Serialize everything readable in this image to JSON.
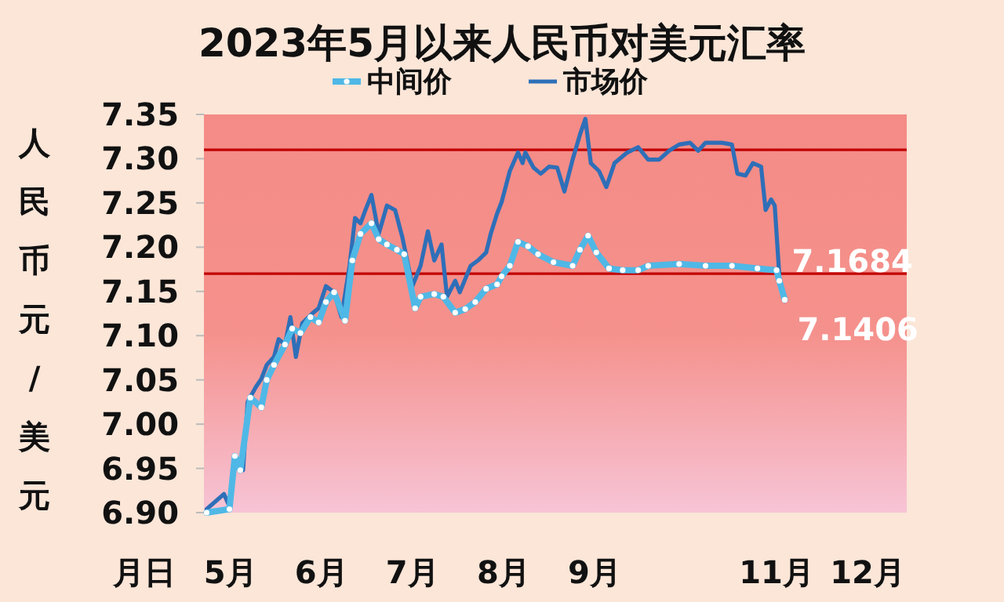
{
  "chart_data": {
    "type": "line",
    "title": "2023年5月以来人民币对美元汇率",
    "ylabel": "人民币元/美元",
    "xlabel": "月日",
    "xlim": [
      4.71,
      12.43
    ],
    "xticks": [
      {
        "value": 5,
        "label": "5月"
      },
      {
        "value": 6,
        "label": "6月"
      },
      {
        "value": 7,
        "label": "7月"
      },
      {
        "value": 8,
        "label": "8月"
      },
      {
        "value": 9,
        "label": "9月"
      },
      {
        "value": 11,
        "label": "11月"
      },
      {
        "value": 12,
        "label": "12月"
      }
    ],
    "ylim": [
      6.9,
      7.35
    ],
    "yticks": [
      {
        "value": 6.9,
        "label": "6.90"
      },
      {
        "value": 6.95,
        "label": "6.95"
      },
      {
        "value": 7.0,
        "label": "7.00"
      },
      {
        "value": 7.05,
        "label": "7.05"
      },
      {
        "value": 7.1,
        "label": "7.10"
      },
      {
        "value": 7.15,
        "label": "7.15"
      },
      {
        "value": 7.2,
        "label": "7.20"
      },
      {
        "value": 7.25,
        "label": "7.25"
      },
      {
        "value": 7.3,
        "label": "7.30"
      },
      {
        "value": 7.35,
        "label": "7.35"
      }
    ],
    "grid": false,
    "legend": "top",
    "series": [
      {
        "name": "中间价",
        "color": "#4fb8e6",
        "marker": "circle",
        "x": [
          4.74,
          4.99,
          5.05,
          5.11,
          5.22,
          5.34,
          5.4,
          5.48,
          5.6,
          5.68,
          5.77,
          5.88,
          5.97,
          6.05,
          6.14,
          6.26,
          6.34,
          6.43,
          6.55,
          6.63,
          6.72,
          6.83,
          6.91,
          7.03,
          7.09,
          7.24,
          7.34,
          7.47,
          7.58,
          7.69,
          7.81,
          7.93,
          7.98,
          8.07,
          8.16,
          8.27,
          8.38,
          8.55,
          8.76,
          8.84,
          8.93,
          9.02,
          9.16,
          9.31,
          9.48,
          9.59,
          9.93,
          10.22,
          10.51,
          10.79,
          11.0,
          11.03,
          11.09
        ],
        "values": [
          6.9,
          6.904,
          6.964,
          6.948,
          7.03,
          7.019,
          7.05,
          7.067,
          7.09,
          7.108,
          7.103,
          7.121,
          7.115,
          7.138,
          7.149,
          7.117,
          7.185,
          7.215,
          7.227,
          7.209,
          7.203,
          7.197,
          7.192,
          7.131,
          7.144,
          7.147,
          7.144,
          7.126,
          7.13,
          7.138,
          7.153,
          7.158,
          7.167,
          7.179,
          7.206,
          7.201,
          7.192,
          7.183,
          7.179,
          7.197,
          7.213,
          7.194,
          7.176,
          7.174,
          7.174,
          7.179,
          7.181,
          7.179,
          7.179,
          7.176,
          7.174,
          7.162,
          7.1406
        ]
      },
      {
        "name": "市场价",
        "color": "#2e6fb8",
        "marker": "none",
        "x": [
          4.74,
          4.93,
          4.99,
          5.05,
          5.14,
          5.19,
          5.28,
          5.34,
          5.4,
          5.48,
          5.53,
          5.6,
          5.66,
          5.72,
          5.79,
          5.91,
          5.97,
          6.05,
          6.14,
          6.22,
          6.31,
          6.37,
          6.43,
          6.48,
          6.55,
          6.63,
          6.72,
          6.81,
          6.89,
          7.0,
          7.09,
          7.17,
          7.24,
          7.32,
          7.38,
          7.47,
          7.52,
          7.64,
          7.72,
          7.81,
          7.86,
          7.93,
          7.98,
          8.07,
          8.16,
          8.21,
          8.24,
          8.33,
          8.41,
          8.5,
          8.59,
          8.67,
          8.76,
          8.84,
          8.9,
          8.96,
          9.05,
          9.13,
          9.22,
          9.36,
          9.48,
          9.59,
          9.71,
          9.82,
          9.93,
          10.05,
          10.14,
          10.22,
          10.4,
          10.51,
          10.57,
          10.66,
          10.74,
          10.83,
          10.88,
          10.94,
          10.98,
          11.03
        ],
        "values": [
          6.904,
          6.921,
          6.907,
          6.96,
          6.948,
          7.025,
          7.042,
          7.051,
          7.067,
          7.076,
          7.096,
          7.09,
          7.121,
          7.076,
          7.114,
          7.126,
          7.131,
          7.156,
          7.149,
          7.121,
          7.179,
          7.233,
          7.227,
          7.241,
          7.259,
          7.215,
          7.247,
          7.242,
          7.211,
          7.156,
          7.179,
          7.218,
          7.185,
          7.203,
          7.144,
          7.162,
          7.149,
          7.179,
          7.185,
          7.194,
          7.215,
          7.238,
          7.251,
          7.286,
          7.307,
          7.295,
          7.307,
          7.29,
          7.283,
          7.291,
          7.29,
          7.263,
          7.299,
          7.327,
          7.345,
          7.295,
          7.286,
          7.268,
          7.295,
          7.307,
          7.313,
          7.299,
          7.299,
          7.309,
          7.316,
          7.318,
          7.309,
          7.318,
          7.318,
          7.316,
          7.283,
          7.281,
          7.295,
          7.291,
          7.242,
          7.254,
          7.247,
          7.1684
        ]
      }
    ],
    "ref_lines": [
      {
        "axis": "y",
        "value": 7.31,
        "color": "#c00000"
      },
      {
        "axis": "y",
        "value": 7.17,
        "color": "#c00000"
      }
    ],
    "annotations": [
      {
        "text": "7.1684",
        "x": 11.03,
        "y": 7.1684
      },
      {
        "text": "7.1406",
        "x": 11.09,
        "y": 7.1406
      }
    ]
  }
}
